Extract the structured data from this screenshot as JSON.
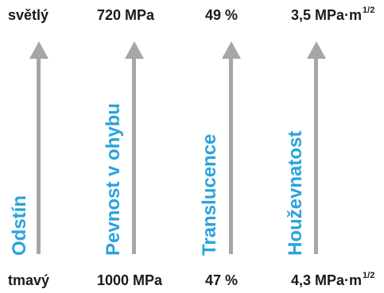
{
  "columns": [
    {
      "top_label": "světlý",
      "bottom_label": "tmavý",
      "axis_label": "Odstín"
    },
    {
      "top_label": "720 MPa",
      "bottom_label": "1000 MPa",
      "axis_label": "Pevnost v ohybu"
    },
    {
      "top_label": "49 %",
      "bottom_label": "47 %",
      "axis_label": "Translucence"
    },
    {
      "top_label": "3,5 MPa·m",
      "top_label_sup": "1/2",
      "bottom_label": "4,3 MPa·m",
      "bottom_label_sup": "1/2",
      "axis_label": "Houževnatost"
    }
  ],
  "colors": {
    "arrow": "#a6a6a6",
    "axis_text": "#2aa3db",
    "value_text": "#1a1a1a"
  }
}
